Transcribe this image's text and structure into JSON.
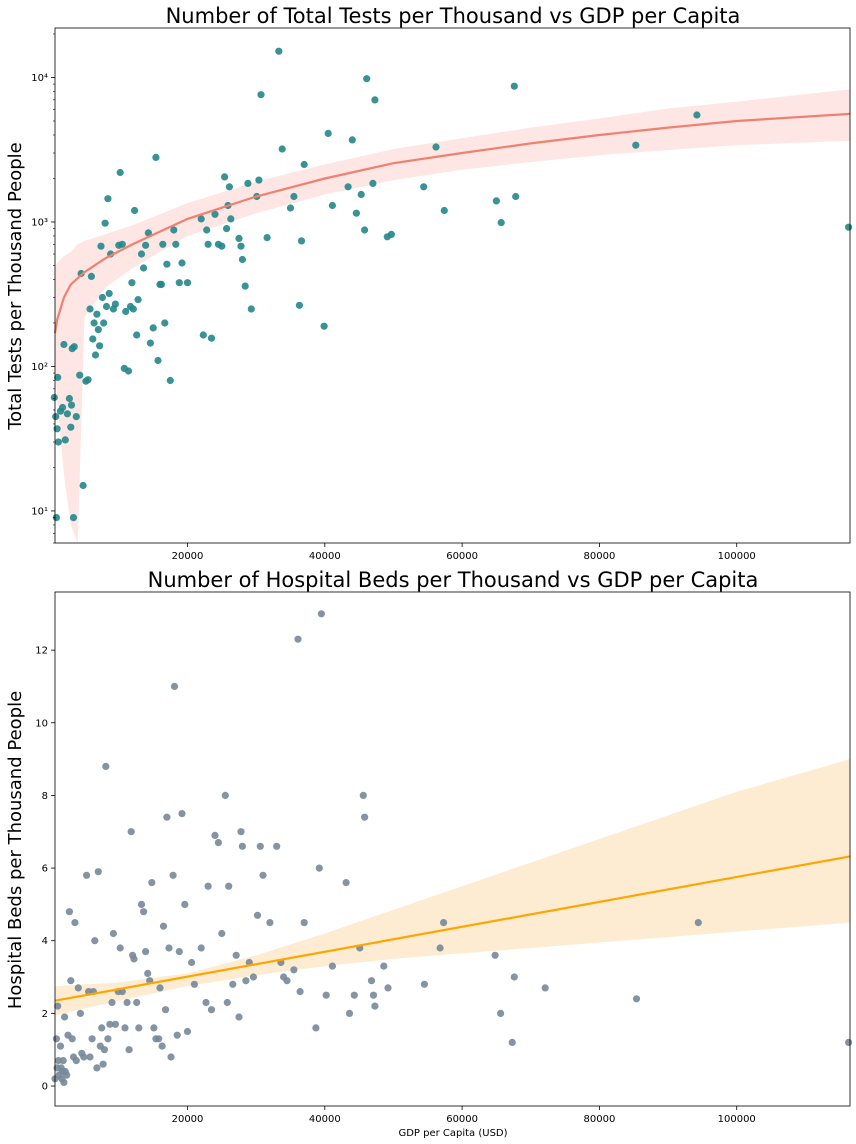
{
  "chart_data": [
    {
      "type": "scatter",
      "title": "Number of Total Tests per Thousand vs GDP per Capita",
      "xlabel": "",
      "ylabel": "Total Tests per Thousand People",
      "yscale": "log",
      "xlim": [
        700,
        116500
      ],
      "ylim": [
        6,
        22000
      ],
      "x_ticks": [
        20000,
        40000,
        60000,
        80000,
        100000
      ],
      "x_tick_labels": [
        "20000",
        "40000",
        "60000",
        "80000",
        "100000"
      ],
      "y_ticks": [
        10,
        100,
        1000,
        10000
      ],
      "y_tick_labels": [
        "10¹",
        "10²",
        "10³",
        "10⁴"
      ],
      "point_color": "#23878a",
      "fit_line_color": "#f08070",
      "band_color": "#fde6e4",
      "fit_type": "logx",
      "fit_points": [
        [
          700,
          170
        ],
        [
          1000,
          210
        ],
        [
          2000,
          300
        ],
        [
          3000,
          370
        ],
        [
          5000,
          450
        ],
        [
          8000,
          560
        ],
        [
          12000,
          700
        ],
        [
          20000,
          1050
        ],
        [
          30000,
          1500
        ],
        [
          40000,
          2000
        ],
        [
          50000,
          2550
        ],
        [
          60000,
          3000
        ],
        [
          70000,
          3500
        ],
        [
          80000,
          4000
        ],
        [
          90000,
          4500
        ],
        [
          100000,
          5000
        ],
        [
          116500,
          5600
        ]
      ],
      "band_upper": [
        [
          700,
          480
        ],
        [
          1000,
          520
        ],
        [
          2000,
          580
        ],
        [
          3000,
          620
        ],
        [
          4000,
          700
        ],
        [
          5000,
          740
        ],
        [
          8000,
          820
        ],
        [
          12000,
          950
        ],
        [
          20000,
          1350
        ],
        [
          30000,
          1900
        ],
        [
          40000,
          2500
        ],
        [
          50000,
          3200
        ],
        [
          60000,
          3800
        ],
        [
          70000,
          4500
        ],
        [
          80000,
          5200
        ],
        [
          90000,
          6100
        ],
        [
          100000,
          6800
        ],
        [
          116500,
          8300
        ]
      ],
      "band_lower": [
        [
          700,
          110
        ],
        [
          1000,
          60
        ],
        [
          2000,
          18
        ],
        [
          3000,
          8
        ],
        [
          4000,
          5
        ],
        [
          5000,
          220
        ],
        [
          8000,
          350
        ],
        [
          12000,
          480
        ],
        [
          20000,
          800
        ],
        [
          30000,
          1150
        ],
        [
          40000,
          1550
        ],
        [
          50000,
          1950
        ],
        [
          60000,
          2300
        ],
        [
          70000,
          2600
        ],
        [
          80000,
          2900
        ],
        [
          90000,
          3150
        ],
        [
          100000,
          3400
        ],
        [
          116500,
          3650
        ]
      ],
      "points": [
        [
          500,
          29
        ],
        [
          600,
          61
        ],
        [
          800,
          45
        ],
        [
          900,
          9
        ],
        [
          1000,
          37
        ],
        [
          1100,
          84
        ],
        [
          1200,
          30
        ],
        [
          1500,
          49
        ],
        [
          1800,
          52
        ],
        [
          2000,
          142
        ],
        [
          2200,
          31
        ],
        [
          2500,
          47
        ],
        [
          2800,
          60
        ],
        [
          3000,
          38
        ],
        [
          3100,
          54
        ],
        [
          3200,
          133
        ],
        [
          3400,
          9
        ],
        [
          3500,
          137
        ],
        [
          3800,
          45
        ],
        [
          4300,
          87
        ],
        [
          4500,
          440
        ],
        [
          4800,
          15
        ],
        [
          5200,
          79
        ],
        [
          5500,
          81
        ],
        [
          5800,
          250
        ],
        [
          6000,
          420
        ],
        [
          6200,
          155
        ],
        [
          6400,
          200
        ],
        [
          6600,
          120
        ],
        [
          6800,
          230
        ],
        [
          7000,
          180
        ],
        [
          7200,
          139
        ],
        [
          7400,
          680
        ],
        [
          7600,
          300
        ],
        [
          7800,
          200
        ],
        [
          8000,
          980
        ],
        [
          8200,
          260
        ],
        [
          8400,
          1450
        ],
        [
          8600,
          320
        ],
        [
          8800,
          600
        ],
        [
          9200,
          250
        ],
        [
          9500,
          270
        ],
        [
          10000,
          690
        ],
        [
          10200,
          2200
        ],
        [
          10500,
          700
        ],
        [
          10800,
          97
        ],
        [
          11000,
          240
        ],
        [
          11400,
          93
        ],
        [
          11700,
          260
        ],
        [
          11900,
          380
        ],
        [
          12100,
          250
        ],
        [
          12300,
          1200
        ],
        [
          12600,
          165
        ],
        [
          12800,
          290
        ],
        [
          13300,
          600
        ],
        [
          13600,
          480
        ],
        [
          13900,
          690
        ],
        [
          14300,
          840
        ],
        [
          14600,
          145
        ],
        [
          15000,
          185
        ],
        [
          15400,
          2800
        ],
        [
          15700,
          110
        ],
        [
          16000,
          370
        ],
        [
          16200,
          370
        ],
        [
          16400,
          700
        ],
        [
          16700,
          200
        ],
        [
          17000,
          510
        ],
        [
          17500,
          80
        ],
        [
          18000,
          880
        ],
        [
          18300,
          700
        ],
        [
          18800,
          380
        ],
        [
          19200,
          520
        ],
        [
          20000,
          380
        ],
        [
          22000,
          1050
        ],
        [
          22300,
          165
        ],
        [
          22800,
          880
        ],
        [
          23000,
          700
        ],
        [
          23500,
          157
        ],
        [
          24000,
          1130
        ],
        [
          24500,
          700
        ],
        [
          25000,
          680
        ],
        [
          25400,
          2050
        ],
        [
          25700,
          900
        ],
        [
          25900,
          1300
        ],
        [
          26100,
          1750
        ],
        [
          26300,
          1050
        ],
        [
          27500,
          770
        ],
        [
          27800,
          680
        ],
        [
          28000,
          550
        ],
        [
          28400,
          360
        ],
        [
          28800,
          1850
        ],
        [
          29300,
          250
        ],
        [
          30100,
          1500
        ],
        [
          30400,
          1950
        ],
        [
          30700,
          7600
        ],
        [
          31600,
          780
        ],
        [
          33300,
          15200
        ],
        [
          33800,
          3200
        ],
        [
          35000,
          1250
        ],
        [
          35500,
          1500
        ],
        [
          36300,
          265
        ],
        [
          36600,
          740
        ],
        [
          37000,
          2500
        ],
        [
          39900,
          190
        ],
        [
          40500,
          4100
        ],
        [
          41100,
          1300
        ],
        [
          43400,
          1750
        ],
        [
          44000,
          3700
        ],
        [
          44600,
          1150
        ],
        [
          45300,
          1550
        ],
        [
          45800,
          880
        ],
        [
          46100,
          9800
        ],
        [
          47000,
          1850
        ],
        [
          47300,
          7000
        ],
        [
          49100,
          790
        ],
        [
          49700,
          820
        ],
        [
          54400,
          1750
        ],
        [
          56200,
          3300
        ],
        [
          57400,
          1200
        ],
        [
          65000,
          1400
        ],
        [
          65700,
          990
        ],
        [
          67600,
          8700
        ],
        [
          67800,
          1500
        ],
        [
          85300,
          3400
        ],
        [
          94200,
          5500
        ],
        [
          116300,
          920
        ]
      ]
    },
    {
      "type": "scatter",
      "title": "Number of Hospital Beds per Thousand vs GDP per Capita",
      "xlabel": "GDP per Capita (USD)",
      "ylabel": "Hospital Beds per Thousand People",
      "yscale": "linear",
      "xlim": [
        700,
        116500
      ],
      "ylim": [
        -0.55,
        13.6
      ],
      "x_ticks": [
        20000,
        40000,
        60000,
        80000,
        100000
      ],
      "x_tick_labels": [
        "20000",
        "40000",
        "60000",
        "80000",
        "100000"
      ],
      "y_ticks": [
        0,
        2,
        4,
        6,
        8,
        10,
        12
      ],
      "y_tick_labels": [
        "0",
        "2",
        "4",
        "6",
        "8",
        "10",
        "12"
      ],
      "point_color": "#778899",
      "fit_line_color": "#ffa500",
      "band_color": "#feecd2",
      "fit_type": "linear",
      "fit_points": [
        [
          700,
          2.35
        ],
        [
          116500,
          6.32
        ]
      ],
      "band_upper": [
        [
          700,
          2.75
        ],
        [
          10000,
          2.85
        ],
        [
          20000,
          3.1
        ],
        [
          30000,
          3.6
        ],
        [
          40000,
          4.2
        ],
        [
          50000,
          4.85
        ],
        [
          60000,
          5.5
        ],
        [
          70000,
          6.15
        ],
        [
          80000,
          6.8
        ],
        [
          90000,
          7.45
        ],
        [
          100000,
          8.1
        ],
        [
          116500,
          9.0
        ]
      ],
      "band_lower": [
        [
          700,
          1.95
        ],
        [
          10000,
          2.35
        ],
        [
          20000,
          2.75
        ],
        [
          30000,
          3.05
        ],
        [
          40000,
          3.3
        ],
        [
          50000,
          3.5
        ],
        [
          60000,
          3.65
        ],
        [
          70000,
          3.8
        ],
        [
          80000,
          3.95
        ],
        [
          90000,
          4.1
        ],
        [
          100000,
          4.25
        ],
        [
          116500,
          4.5
        ]
      ],
      "points": [
        [
          700,
          0.2
        ],
        [
          900,
          1.3
        ],
        [
          1000,
          0.5
        ],
        [
          1100,
          2.2
        ],
        [
          1200,
          0.7
        ],
        [
          1300,
          0.3
        ],
        [
          1500,
          1.1
        ],
        [
          1600,
          0.5
        ],
        [
          1700,
          0.2
        ],
        [
          1800,
          0.4
        ],
        [
          1900,
          0.7
        ],
        [
          2000,
          0.1
        ],
        [
          2100,
          1.9
        ],
        [
          2200,
          0.4
        ],
        [
          2400,
          0.3
        ],
        [
          2600,
          1.4
        ],
        [
          2800,
          4.8
        ],
        [
          3000,
          2.9
        ],
        [
          3200,
          1.3
        ],
        [
          3400,
          0.8
        ],
        [
          3600,
          4.5
        ],
        [
          3800,
          0.7
        ],
        [
          4100,
          2.7
        ],
        [
          4400,
          2.0
        ],
        [
          4600,
          0.9
        ],
        [
          4900,
          0.8
        ],
        [
          5300,
          5.8
        ],
        [
          5600,
          2.6
        ],
        [
          5800,
          0.8
        ],
        [
          6100,
          1.3
        ],
        [
          6300,
          2.6
        ],
        [
          6500,
          4.0
        ],
        [
          6800,
          0.5
        ],
        [
          7000,
          5.9
        ],
        [
          7300,
          1.1
        ],
        [
          7500,
          1.6
        ],
        [
          7700,
          0.6
        ],
        [
          7900,
          1.0
        ],
        [
          8100,
          8.8
        ],
        [
          8400,
          1.3
        ],
        [
          8700,
          1.7
        ],
        [
          9000,
          2.3
        ],
        [
          9200,
          4.2
        ],
        [
          9500,
          1.7
        ],
        [
          9900,
          2.6
        ],
        [
          10200,
          3.8
        ],
        [
          10500,
          2.6
        ],
        [
          10900,
          1.6
        ],
        [
          11200,
          2.3
        ],
        [
          11500,
          1.0
        ],
        [
          11800,
          7.0
        ],
        [
          12000,
          3.6
        ],
        [
          12200,
          3.5
        ],
        [
          12600,
          2.3
        ],
        [
          12900,
          1.6
        ],
        [
          13300,
          5.0
        ],
        [
          13600,
          4.8
        ],
        [
          13900,
          3.7
        ],
        [
          14200,
          3.1
        ],
        [
          14500,
          2.9
        ],
        [
          14800,
          5.6
        ],
        [
          15100,
          1.6
        ],
        [
          15400,
          1.3
        ],
        [
          15800,
          1.3
        ],
        [
          16000,
          2.7
        ],
        [
          16300,
          1.1
        ],
        [
          16500,
          4.4
        ],
        [
          16800,
          2.1
        ],
        [
          17000,
          7.4
        ],
        [
          17300,
          3.8
        ],
        [
          17600,
          0.8
        ],
        [
          17900,
          5.8
        ],
        [
          18100,
          11.0
        ],
        [
          18500,
          1.4
        ],
        [
          18800,
          3.7
        ],
        [
          19200,
          7.5
        ],
        [
          19600,
          5.0
        ],
        [
          20000,
          1.5
        ],
        [
          20600,
          3.4
        ],
        [
          21000,
          2.8
        ],
        [
          22000,
          3.8
        ],
        [
          22700,
          2.3
        ],
        [
          23000,
          5.5
        ],
        [
          23500,
          2.1
        ],
        [
          24000,
          6.9
        ],
        [
          24500,
          6.7
        ],
        [
          25000,
          4.2
        ],
        [
          25500,
          8.0
        ],
        [
          25800,
          2.3
        ],
        [
          26000,
          5.5
        ],
        [
          26600,
          2.8
        ],
        [
          27100,
          3.6
        ],
        [
          27500,
          1.9
        ],
        [
          27800,
          7.0
        ],
        [
          28000,
          6.6
        ],
        [
          28500,
          2.9
        ],
        [
          29000,
          3.4
        ],
        [
          29600,
          3.0
        ],
        [
          30200,
          4.7
        ],
        [
          30600,
          6.6
        ],
        [
          31000,
          5.8
        ],
        [
          32000,
          4.5
        ],
        [
          33000,
          6.6
        ],
        [
          33600,
          3.4
        ],
        [
          34000,
          3.0
        ],
        [
          34500,
          2.9
        ],
        [
          35500,
          3.2
        ],
        [
          36100,
          12.3
        ],
        [
          36400,
          2.6
        ],
        [
          37000,
          4.5
        ],
        [
          38700,
          1.6
        ],
        [
          39200,
          6.0
        ],
        [
          39500,
          13.0
        ],
        [
          40200,
          2.5
        ],
        [
          41100,
          3.3
        ],
        [
          43100,
          5.6
        ],
        [
          43600,
          2.0
        ],
        [
          44300,
          2.5
        ],
        [
          45100,
          3.8
        ],
        [
          45600,
          8.0
        ],
        [
          45800,
          7.4
        ],
        [
          46800,
          2.9
        ],
        [
          47100,
          2.5
        ],
        [
          47300,
          2.2
        ],
        [
          48600,
          3.3
        ],
        [
          49200,
          2.7
        ],
        [
          54500,
          2.8
        ],
        [
          56800,
          3.8
        ],
        [
          57300,
          4.5
        ],
        [
          64800,
          3.6
        ],
        [
          65600,
          2.0
        ],
        [
          67300,
          1.2
        ],
        [
          67600,
          3.0
        ],
        [
          72100,
          2.7
        ],
        [
          85400,
          2.4
        ],
        [
          94400,
          4.5
        ],
        [
          116300,
          1.2
        ]
      ]
    }
  ]
}
